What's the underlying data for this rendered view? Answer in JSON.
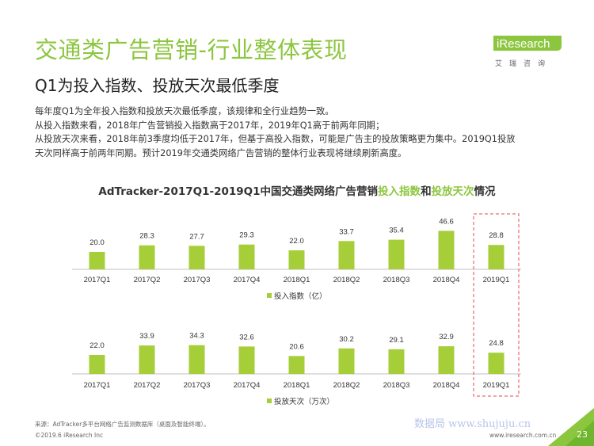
{
  "header": {
    "title": "交通类广告营销-行业整体表现",
    "subtitle": "Q1为投入指数、投放天次最低季度",
    "logo_text": "iResearch",
    "logo_sub": "艾瑞咨询"
  },
  "body_lines": [
    "每年度Q1为全年投入指数和投放天次最低季度，该规律和全行业趋势一致。",
    "从投入指数来看，2018年广告营销投入指数高于2017年，2019年Q1高于前两年同期；",
    "从投放天次来看，2018年前3季度均低于2017年，但基于高投入指数，可能是广告主的投放策略更为集中。2019Q1投放",
    "天次同样高于前两年同期。预计2019年交通类网络广告营销的整体行业表现将继续刷新高度。"
  ],
  "chart_title": {
    "prefix": "AdTracker-2017Q1-2019Q1中国交通类网络广告营销",
    "hl1": "投入指数",
    "mid": "和",
    "hl2": "投放天次",
    "suffix": "情况"
  },
  "colors": {
    "bar": "#a6ce39",
    "accent": "#8cc63f",
    "highlight_box": "#e8474c"
  },
  "chart_data": [
    {
      "type": "bar",
      "categories": [
        "2017Q1",
        "2017Q2",
        "2017Q3",
        "2017Q4",
        "2018Q1",
        "2018Q2",
        "2018Q3",
        "2018Q4",
        "2019Q1"
      ],
      "series": [
        {
          "name": "投入指数（亿）",
          "values": [
            20.0,
            28.3,
            27.7,
            29.3,
            22.0,
            33.7,
            35.4,
            46.6,
            28.8
          ]
        }
      ],
      "legend_position": "bottom-center",
      "grid": false
    },
    {
      "type": "bar",
      "categories": [
        "2017Q1",
        "2017Q2",
        "2017Q3",
        "2017Q4",
        "2018Q1",
        "2018Q2",
        "2018Q3",
        "2018Q4",
        "2019Q1"
      ],
      "series": [
        {
          "name": "投放天次（万次）",
          "values": [
            22.0,
            33.9,
            34.3,
            32.6,
            20.6,
            30.2,
            29.1,
            32.9,
            24.8
          ]
        }
      ],
      "legend_position": "bottom-center",
      "grid": false
    }
  ],
  "footer": {
    "source": "来源：AdTracker多平台网络广告监测数据库（桌面及智能终端）。",
    "copyright": "©2019.6 iResearch Inc",
    "website": "www.iresearch.com.cn",
    "page_number": "23",
    "watermark": "数据局 www.shujuju.cn"
  }
}
